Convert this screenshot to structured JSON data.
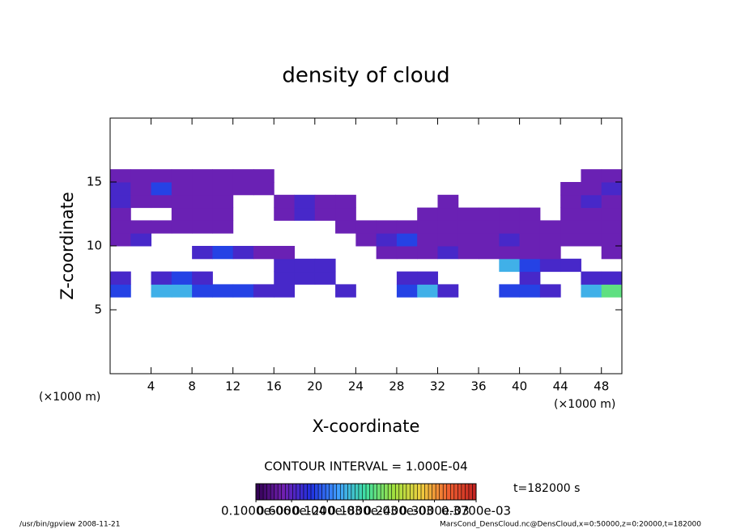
{
  "chart_data": {
    "type": "heatmap",
    "title": "density of cloud",
    "x_label": "X-coordinate",
    "y_label": "Z-coordinate",
    "x_unit_label": "(×1000 m)",
    "y_unit_label": "(×1000 m)",
    "contour_interval": "CONTOUR INTERVAL = 1.000E-04",
    "time_label": "t=182000 s",
    "footer_left": "/usr/bin/gpview  2008-11-21",
    "footer_right": "MarsCond_DensCloud.nc@DensCloud,x=0:50000,z=0:20000,t=182000",
    "xlim": [
      0,
      50
    ],
    "ylim": [
      0,
      20
    ],
    "xticks": [
      4,
      8,
      12,
      16,
      20,
      24,
      28,
      32,
      36,
      40,
      44,
      48
    ],
    "yticks": [
      5,
      10,
      15
    ],
    "x": [
      1,
      3,
      5,
      7,
      9,
      11,
      13,
      15,
      17,
      19,
      21,
      23,
      25,
      27,
      29,
      31,
      33,
      35,
      37,
      39,
      41,
      43,
      45,
      47,
      49
    ],
    "y": [
      0.5,
      1.5,
      2.5,
      3.5,
      4.5,
      5.5,
      6.5,
      7.5,
      8.5,
      9.5,
      10.5,
      11.5,
      12.5,
      13.5,
      14.5,
      15.5,
      16.5,
      17.5,
      18.5,
      19.5
    ],
    "clim": [
      0,
      0.00037
    ],
    "colormap": [
      "#300050",
      "#7020b0",
      "#2030e0",
      "#40a0ff",
      "#40e0a0",
      "#a0e040",
      "#f0d040",
      "#f06030",
      "#c02020"
    ],
    "colorbar_ticks": [
      {
        "value": 1e-07,
        "label": "0.1000e-06"
      },
      {
        "value": 6e-05,
        "label": "0.6000e-04"
      },
      {
        "value": 0.00012,
        "label": "0.1200e-03"
      },
      {
        "value": 0.00018,
        "label": "0.1800e-03"
      },
      {
        "value": 0.00024,
        "label": "0.2400e-03"
      },
      {
        "value": 0.0003,
        "label": "0.3000e-03"
      },
      {
        "value": 0.00037,
        "label": "0.3700e-03"
      }
    ],
    "values": [
      [
        null,
        null,
        null,
        null,
        null,
        null,
        null,
        null,
        null,
        null,
        null,
        null,
        null,
        null,
        null,
        null,
        null,
        null,
        null,
        null,
        null,
        null,
        null,
        null,
        null
      ],
      [
        null,
        null,
        null,
        null,
        null,
        null,
        null,
        null,
        null,
        null,
        null,
        null,
        null,
        null,
        null,
        null,
        null,
        null,
        null,
        null,
        null,
        null,
        null,
        null,
        null
      ],
      [
        null,
        null,
        null,
        null,
        null,
        null,
        null,
        null,
        null,
        null,
        null,
        null,
        null,
        null,
        null,
        null,
        null,
        null,
        null,
        null,
        null,
        null,
        null,
        null,
        null
      ],
      [
        null,
        null,
        null,
        null,
        null,
        null,
        null,
        null,
        null,
        null,
        null,
        null,
        null,
        null,
        null,
        null,
        null,
        null,
        null,
        null,
        null,
        null,
        null,
        null,
        null
      ],
      [
        null,
        null,
        null,
        null,
        null,
        null,
        null,
        null,
        null,
        null,
        null,
        null,
        null,
        null,
        null,
        null,
        null,
        null,
        null,
        null,
        null,
        null,
        null,
        null,
        null
      ],
      [
        null,
        null,
        null,
        null,
        null,
        null,
        null,
        null,
        null,
        null,
        null,
        null,
        null,
        null,
        null,
        null,
        null,
        null,
        null,
        null,
        null,
        null,
        null,
        null,
        null
      ],
      [
        0.0001,
        null,
        0.00015,
        0.00015,
        0.0001,
        0.0001,
        0.0001,
        7e-05,
        7e-05,
        null,
        null,
        7e-05,
        null,
        null,
        0.0001,
        0.00015,
        7e-05,
        null,
        null,
        0.0001,
        0.0001,
        7e-05,
        null,
        0.00015,
        0.0002
      ],
      [
        7e-05,
        null,
        7e-05,
        0.0001,
        7e-05,
        null,
        null,
        null,
        7e-05,
        7e-05,
        7e-05,
        null,
        null,
        null,
        7e-05,
        7e-05,
        null,
        null,
        null,
        null,
        7e-05,
        null,
        null,
        7e-05,
        7e-05
      ],
      [
        null,
        null,
        null,
        null,
        null,
        null,
        null,
        null,
        7e-05,
        7e-05,
        7e-05,
        null,
        null,
        null,
        null,
        null,
        null,
        null,
        null,
        0.00015,
        0.0001,
        7e-05,
        7e-05,
        null,
        null
      ],
      [
        null,
        null,
        null,
        null,
        7e-05,
        0.0001,
        7e-05,
        5e-05,
        5e-05,
        null,
        null,
        null,
        null,
        5e-05,
        5e-05,
        5e-05,
        7e-05,
        5e-05,
        5e-05,
        5e-05,
        5e-05,
        5e-05,
        null,
        null,
        5e-05
      ],
      [
        5e-05,
        7e-05,
        null,
        null,
        null,
        null,
        null,
        null,
        null,
        null,
        null,
        null,
        5e-05,
        7e-05,
        0.0001,
        5e-05,
        5e-05,
        5e-05,
        5e-05,
        7e-05,
        5e-05,
        5e-05,
        5e-05,
        5e-05,
        5e-05
      ],
      [
        5e-05,
        5e-05,
        5e-05,
        5e-05,
        5e-05,
        5e-05,
        null,
        null,
        null,
        null,
        null,
        5e-05,
        5e-05,
        5e-05,
        5e-05,
        5e-05,
        5e-05,
        5e-05,
        5e-05,
        5e-05,
        5e-05,
        5e-05,
        5e-05,
        5e-05,
        5e-05
      ],
      [
        5e-05,
        null,
        null,
        5e-05,
        5e-05,
        5e-05,
        null,
        null,
        5e-05,
        7e-05,
        5e-05,
        5e-05,
        null,
        null,
        null,
        5e-05,
        5e-05,
        5e-05,
        5e-05,
        5e-05,
        5e-05,
        null,
        5e-05,
        5e-05,
        5e-05
      ],
      [
        7e-05,
        5e-05,
        5e-05,
        5e-05,
        5e-05,
        5e-05,
        null,
        null,
        5e-05,
        7e-05,
        5e-05,
        5e-05,
        null,
        null,
        null,
        null,
        5e-05,
        null,
        null,
        null,
        null,
        null,
        5e-05,
        7e-05,
        5e-05
      ],
      [
        7e-05,
        5e-05,
        0.0001,
        5e-05,
        5e-05,
        5e-05,
        5e-05,
        5e-05,
        null,
        null,
        null,
        null,
        null,
        null,
        null,
        null,
        null,
        null,
        null,
        null,
        null,
        null,
        5e-05,
        5e-05,
        7e-05
      ],
      [
        5e-05,
        5e-05,
        5e-05,
        5e-05,
        5e-05,
        5e-05,
        5e-05,
        5e-05,
        null,
        null,
        null,
        null,
        null,
        null,
        null,
        null,
        null,
        null,
        null,
        null,
        null,
        null,
        null,
        5e-05,
        5e-05
      ],
      [
        null,
        null,
        null,
        null,
        null,
        null,
        null,
        null,
        null,
        null,
        null,
        null,
        null,
        null,
        null,
        null,
        null,
        null,
        null,
        null,
        null,
        null,
        null,
        null,
        null
      ],
      [
        null,
        null,
        null,
        null,
        null,
        null,
        null,
        null,
        null,
        null,
        null,
        null,
        null,
        null,
        null,
        null,
        null,
        null,
        null,
        null,
        null,
        null,
        null,
        null,
        null
      ],
      [
        null,
        null,
        null,
        null,
        null,
        null,
        null,
        null,
        null,
        null,
        null,
        null,
        null,
        null,
        null,
        null,
        null,
        null,
        null,
        null,
        null,
        null,
        null,
        null,
        null
      ],
      [
        null,
        null,
        null,
        null,
        null,
        null,
        null,
        null,
        null,
        null,
        null,
        null,
        null,
        null,
        null,
        null,
        null,
        null,
        null,
        null,
        null,
        null,
        null,
        null,
        null
      ]
    ]
  }
}
